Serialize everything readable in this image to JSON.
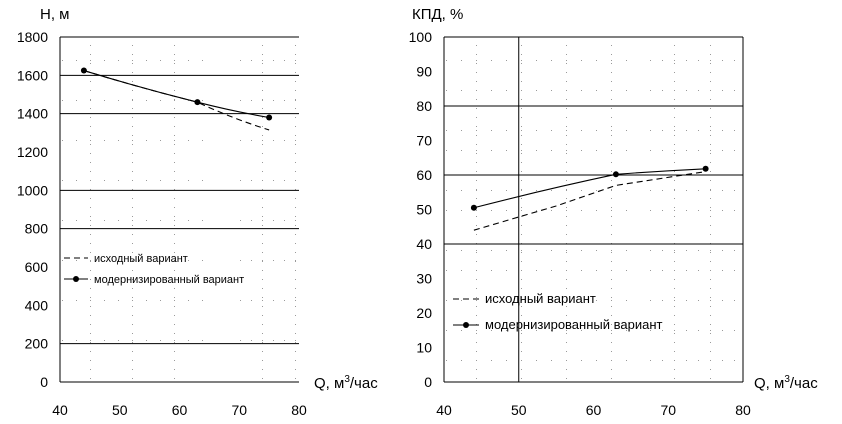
{
  "chart_data": [
    {
      "type": "line",
      "ylabel": "H, м",
      "xlabel": "Q, м",
      "xlabel_sup": "3",
      "xlabel_tail": "/час",
      "xlim": [
        40,
        80
      ],
      "ylim": [
        0,
        1800
      ],
      "x_ticks": [
        "40",
        "50",
        "60",
        "70",
        "80"
      ],
      "y_ticks": [
        "0",
        "200",
        "400",
        "600",
        "800",
        "1000",
        "1200",
        "1400",
        "1600",
        "1800"
      ],
      "grid": "horizontal",
      "legend_position": "middle-left",
      "series": [
        {
          "name": "исходный вариант",
          "style": "dashed",
          "x": [
            44,
            63,
            75
          ],
          "y": [
            1625,
            1460,
            1315
          ]
        },
        {
          "name": "модернизированный вариант",
          "style": "solid-markers",
          "x": [
            44,
            63,
            75
          ],
          "y": [
            1625,
            1460,
            1380
          ]
        }
      ]
    },
    {
      "type": "line",
      "ylabel": "КПД, %",
      "xlabel": "Q, м",
      "xlabel_sup": "3",
      "xlabel_tail": "/час",
      "xlim": [
        40,
        80
      ],
      "ylim": [
        0,
        100
      ],
      "x_ticks": [
        "40",
        "50",
        "60",
        "70",
        "80"
      ],
      "y_ticks": [
        "0",
        "10",
        "20",
        "30",
        "40",
        "50",
        "60",
        "70",
        "80",
        "90",
        "100"
      ],
      "grid": "major lines at 40, 60, 80 % and Q = 50",
      "legend_position": "bottom-right",
      "series": [
        {
          "name": "исходный вариант",
          "style": "dashed",
          "x": [
            44,
            55,
            63,
            75
          ],
          "y": [
            44,
            51,
            57,
            61
          ]
        },
        {
          "name": "модернизированный вариант",
          "style": "solid-markers",
          "x": [
            44,
            63,
            75
          ],
          "y": [
            50.5,
            60.2,
            61.8
          ]
        }
      ]
    }
  ],
  "colors": {
    "ink": "#000000",
    "grid_dots": "#9a9a9a",
    "background": "#ffffff"
  }
}
